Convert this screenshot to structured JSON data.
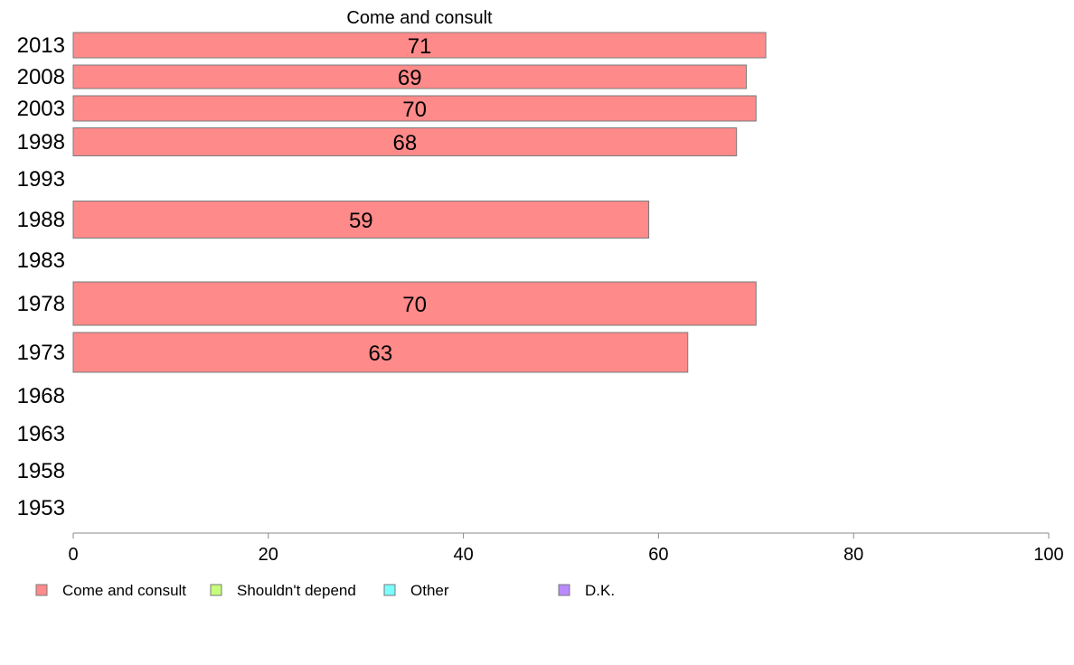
{
  "chart_data": {
    "type": "bar",
    "orientation": "horizontal",
    "title": "Come and consult",
    "categories": [
      "2013",
      "2008",
      "2003",
      "1998",
      "1993",
      "1988",
      "1983",
      "1978",
      "1973",
      "1968",
      "1963",
      "1958",
      "1953"
    ],
    "series": [
      {
        "name": "Come and consult",
        "color": "#ff8a8a",
        "values": [
          71,
          69,
          70,
          68,
          null,
          59,
          null,
          70,
          63,
          null,
          null,
          null,
          null
        ]
      }
    ],
    "data_labels": [
      "71",
      "69",
      "70",
      "68",
      "",
      "59",
      "",
      "70",
      "63",
      "",
      "",
      "",
      ""
    ],
    "xlim": [
      0,
      100
    ],
    "xticks": [
      "0",
      "20",
      "40",
      "60",
      "80",
      "100"
    ],
    "grid": false,
    "legend": {
      "placement": "bottom-left",
      "items": [
        {
          "label": "Come and consult",
          "color": "#ff8a8a"
        },
        {
          "label": "Shouldn't depend",
          "color": "#c6ff7a"
        },
        {
          "label": "Other",
          "color": "#7affff"
        },
        {
          "label": "D.K.",
          "color": "#b98aff"
        }
      ]
    }
  }
}
